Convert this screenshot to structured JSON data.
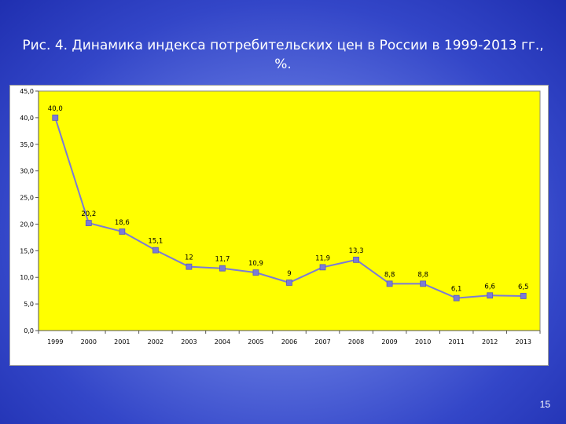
{
  "slide": {
    "title": "Рис. 4. Динамика индекса потребительских цен в России в 1999-2013 гг., %.",
    "page_number": "15",
    "background_color": "#3346c8"
  },
  "chart_data": {
    "type": "line",
    "title": "",
    "xlabel": "",
    "ylabel": "",
    "x": [
      "1999",
      "2000",
      "2001",
      "2002",
      "2003",
      "2004",
      "2005",
      "2006",
      "2007",
      "2008",
      "2009",
      "2010",
      "2011",
      "2012",
      "2013"
    ],
    "series": [
      {
        "values": [
          40.0,
          20.2,
          18.6,
          15.1,
          12.0,
          11.7,
          10.9,
          9.0,
          11.9,
          13.3,
          8.8,
          8.8,
          6.1,
          6.6,
          6.5
        ],
        "labels": [
          "40,0",
          "20,2",
          "18,6",
          "15,1",
          "12",
          "11,7",
          "10,9",
          "9",
          "11,9",
          "13,3",
          "8,8",
          "8,8",
          "6,1",
          "6,6",
          "6,5"
        ],
        "color": "#7b7bd6"
      }
    ],
    "ylim": [
      0,
      45
    ],
    "yticks": [
      0,
      5,
      10,
      15,
      20,
      25,
      30,
      35,
      40,
      45
    ],
    "ytick_labels": [
      "0,0",
      "5,0",
      "10,0",
      "15,0",
      "20,0",
      "25,0",
      "30,0",
      "35,0",
      "40,0",
      "45,0"
    ],
    "plot_background": "#ffff00",
    "grid": false,
    "legend": "none"
  }
}
